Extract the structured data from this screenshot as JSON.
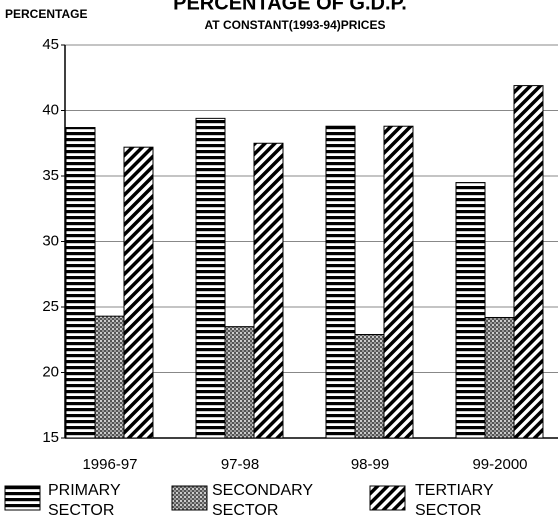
{
  "chart_data": {
    "type": "bar",
    "title": "PERCENTAGE OF G.D.P.",
    "subtitle": "AT CONSTANT(1993-94)PRICES",
    "y_label": "PERCENTAGE",
    "categories": [
      "1996-97",
      "97-98",
      "98-99",
      "99-2000"
    ],
    "series": [
      {
        "name": "PRIMARY SECTOR",
        "color": "#000000",
        "pattern": "horizontal",
        "values": [
          38.7,
          39.4,
          38.8,
          34.5
        ]
      },
      {
        "name": "SECONDARY SECTOR",
        "color": "#000000",
        "pattern": "crosshatch",
        "values": [
          24.3,
          23.5,
          22.9,
          24.2
        ]
      },
      {
        "name": "TERTIARY SECTOR",
        "color": "#000000",
        "pattern": "diagonal",
        "values": [
          37.2,
          37.5,
          38.8,
          41.9
        ]
      }
    ],
    "ylim": [
      15,
      45
    ],
    "yticks": [
      15,
      20,
      25,
      30,
      35,
      40,
      45
    ],
    "grid": true
  }
}
